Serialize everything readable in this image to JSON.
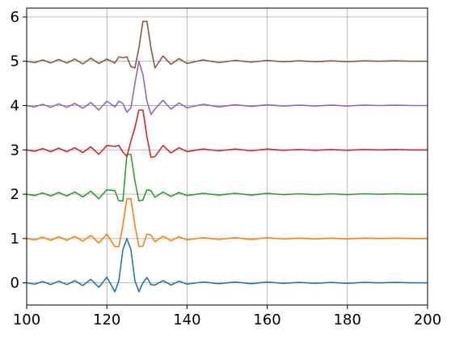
{
  "chart_data": {
    "type": "line",
    "title": "",
    "xlabel": "",
    "ylabel": "",
    "xlim": [
      100,
      200
    ],
    "ylim": [
      -0.5,
      6.2
    ],
    "grid": true,
    "x_ticks": [
      100,
      120,
      140,
      160,
      180,
      200
    ],
    "y_ticks": [
      0,
      1,
      2,
      3,
      4,
      5,
      6
    ],
    "x_tick_labels": [
      "100",
      "120",
      "140",
      "160",
      "180",
      "200"
    ],
    "y_tick_labels": [
      "0",
      "1",
      "2",
      "3",
      "4",
      "5",
      "6"
    ],
    "x": [
      100,
      102,
      104,
      106,
      108,
      110,
      112,
      114,
      116,
      118,
      120,
      122,
      123,
      124,
      125,
      126,
      127,
      128,
      129,
      130,
      131,
      132,
      134,
      136,
      138,
      140,
      144,
      148,
      152,
      156,
      160,
      164,
      168,
      172,
      176,
      180,
      184,
      188,
      192,
      196,
      200
    ],
    "series": [
      {
        "color": "#1f77b4",
        "values": [
          0.0,
          -0.03,
          0.03,
          -0.04,
          0.04,
          -0.04,
          0.05,
          -0.06,
          0.08,
          -0.1,
          0.13,
          -0.2,
          0.05,
          0.75,
          1.0,
          0.75,
          0.05,
          -0.2,
          0.0,
          0.12,
          -0.04,
          -0.05,
          0.05,
          -0.05,
          0.04,
          -0.03,
          0.02,
          -0.02,
          0.02,
          -0.02,
          0.02,
          -0.01,
          0.01,
          -0.01,
          0.01,
          -0.01,
          0.01,
          0.0,
          0.01,
          0.0,
          0.0
        ]
      },
      {
        "color": "#ff7f0e",
        "values": [
          1.0,
          0.97,
          1.03,
          0.96,
          1.04,
          0.96,
          1.05,
          0.94,
          1.07,
          0.9,
          1.1,
          0.82,
          0.82,
          1.3,
          1.9,
          1.9,
          1.3,
          0.82,
          0.83,
          1.1,
          1.08,
          0.93,
          1.05,
          0.95,
          1.04,
          0.97,
          1.02,
          0.98,
          1.02,
          0.98,
          1.02,
          0.99,
          1.01,
          0.99,
          1.01,
          0.99,
          1.01,
          1.0,
          1.01,
          1.0,
          1.0
        ]
      },
      {
        "color": "#2ca02c",
        "values": [
          2.0,
          1.97,
          2.03,
          1.96,
          2.04,
          1.96,
          2.05,
          1.94,
          2.07,
          1.9,
          2.1,
          2.08,
          1.85,
          1.85,
          2.9,
          2.9,
          2.3,
          1.85,
          1.87,
          2.1,
          2.08,
          1.93,
          2.05,
          1.95,
          2.04,
          1.97,
          2.02,
          1.98,
          2.02,
          1.98,
          2.02,
          1.99,
          2.01,
          1.99,
          2.01,
          1.99,
          2.01,
          2.0,
          2.01,
          2.0,
          2.0
        ]
      },
      {
        "color": "#d62728",
        "values": [
          3.0,
          2.97,
          3.03,
          2.96,
          3.04,
          2.96,
          3.05,
          2.94,
          3.07,
          2.9,
          3.1,
          3.08,
          3.1,
          2.95,
          2.85,
          3.2,
          3.5,
          3.9,
          3.9,
          3.3,
          2.83,
          2.85,
          3.1,
          2.93,
          3.05,
          2.96,
          3.02,
          2.98,
          3.02,
          2.98,
          3.02,
          2.99,
          3.01,
          2.99,
          3.01,
          2.99,
          3.01,
          3.0,
          3.01,
          3.0,
          3.0
        ]
      },
      {
        "color": "#9467bd",
        "values": [
          4.0,
          3.97,
          4.03,
          3.96,
          4.04,
          3.96,
          4.05,
          3.94,
          4.07,
          3.9,
          4.1,
          3.97,
          4.1,
          4.05,
          3.85,
          3.95,
          4.5,
          5.0,
          4.7,
          4.1,
          3.8,
          3.92,
          4.12,
          3.92,
          4.06,
          3.95,
          4.03,
          3.97,
          4.02,
          3.98,
          4.02,
          3.99,
          4.01,
          3.99,
          4.01,
          3.99,
          4.01,
          4.0,
          4.01,
          4.0,
          4.0
        ]
      },
      {
        "color": "#8c564b",
        "values": [
          5.0,
          4.97,
          5.03,
          4.96,
          5.04,
          4.96,
          5.05,
          4.94,
          5.07,
          4.95,
          5.05,
          4.96,
          5.1,
          5.08,
          5.1,
          4.88,
          4.85,
          5.3,
          5.9,
          5.9,
          5.3,
          4.85,
          5.12,
          4.93,
          5.06,
          4.95,
          5.03,
          4.97,
          5.02,
          4.98,
          5.02,
          4.99,
          5.01,
          4.99,
          5.01,
          4.99,
          5.01,
          5.0,
          5.01,
          5.0,
          5.0
        ]
      }
    ]
  }
}
